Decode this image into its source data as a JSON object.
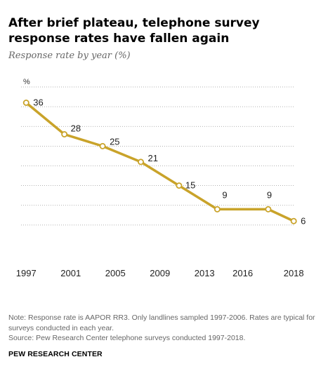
{
  "header": {
    "title": "After brief plateau, telephone survey response rates have fallen again",
    "subtitle": "Response rate by year (%)"
  },
  "chart_data": {
    "type": "line",
    "title": "After brief plateau, telephone survey response rates have fallen again",
    "subtitle": "Response rate by year (%)",
    "ylabel": "%",
    "xlabel": "",
    "x": [
      1997,
      2000,
      2003,
      2006,
      2009,
      2012,
      2016,
      2018
    ],
    "series": [
      {
        "values": [
          36,
          28,
          25,
          21,
          15,
          9,
          9,
          6
        ]
      }
    ],
    "x_tick_labels": [
      "1997",
      "2001",
      "2005",
      "2009",
      "2013",
      "2016",
      "2018"
    ],
    "x_tick_positions": [
      1997,
      2000.5,
      2004,
      2007.5,
      2011,
      2014,
      2018
    ],
    "value_labels": [
      "36",
      "28",
      "25",
      "21",
      "15",
      "9",
      "9",
      "6"
    ],
    "ylim": [
      0,
      40
    ],
    "grid": true,
    "line_color": "#c9a32a",
    "marker_fill": "#ffffff",
    "grid_color": "#999999"
  },
  "footer": {
    "note": "Note: Response rate is AAPOR RR3. Only landlines sampled 1997-2006. Rates are typical for surveys conducted in each year.",
    "source": "Source: Pew Research Center telephone surveys conducted 1997-2018.",
    "org": "PEW RESEARCH CENTER"
  }
}
